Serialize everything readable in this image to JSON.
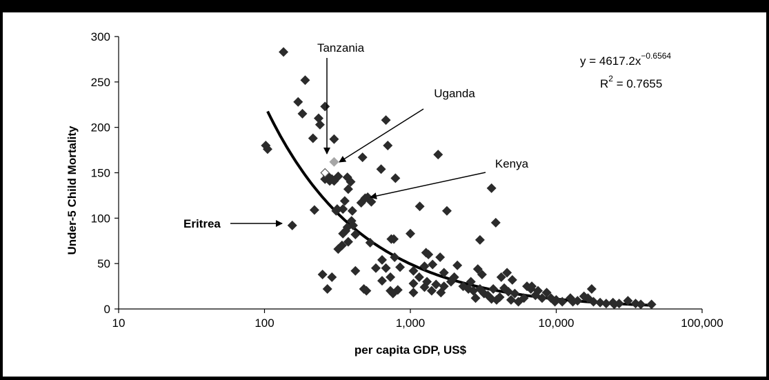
{
  "chart_data": {
    "type": "scatter",
    "title": "",
    "xlabel": "per capita GDP, US$",
    "ylabel": "Under-5 Child Mortality",
    "x_scale": "log",
    "xlim": [
      10,
      100000
    ],
    "ylim": [
      0,
      300
    ],
    "x_ticks": [
      10,
      100,
      1000,
      10000,
      100000
    ],
    "x_tick_labels": [
      "10",
      "100",
      "1,000",
      "10,000",
      "100,000"
    ],
    "y_ticks": [
      0,
      50,
      100,
      150,
      200,
      250,
      300
    ],
    "y_tick_labels": [
      "0",
      "50",
      "100",
      "150",
      "200",
      "250",
      "300"
    ],
    "grid": false,
    "legend": "none",
    "equation_label": "y = 4617.2x",
    "equation_exponent": "−0.6564",
    "r2_label": "R",
    "r2_sup": "2",
    "r2_value": " = 0.7655",
    "trendline": {
      "a": 4617.2,
      "b": -0.6564,
      "x_range": [
        105,
        45000
      ]
    },
    "colors": {
      "marker": "#2b2b2b",
      "highlight": "#a6a6a6",
      "line": "#000000"
    },
    "points": [
      [
        135,
        283
      ],
      [
        190,
        252
      ],
      [
        170,
        228
      ],
      [
        182,
        215
      ],
      [
        260,
        223
      ],
      [
        235,
        210
      ],
      [
        240,
        203
      ],
      [
        215,
        188
      ],
      [
        300,
        187
      ],
      [
        680,
        208
      ],
      [
        102,
        180
      ],
      [
        105,
        176
      ],
      [
        700,
        180
      ],
      [
        1550,
        170
      ],
      [
        470,
        167
      ],
      [
        630,
        154
      ],
      [
        1160,
        113
      ],
      [
        1780,
        108
      ],
      [
        3600,
        133
      ],
      [
        3850,
        95
      ],
      [
        320,
        146
      ],
      [
        290,
        143
      ],
      [
        300,
        141
      ],
      [
        370,
        145
      ],
      [
        390,
        140
      ],
      [
        375,
        132
      ],
      [
        270,
        147
      ],
      [
        280,
        141
      ],
      [
        260,
        143
      ],
      [
        510,
        123
      ],
      [
        460,
        117
      ],
      [
        540,
        118
      ],
      [
        490,
        122
      ],
      [
        355,
        119
      ],
      [
        345,
        110
      ],
      [
        400,
        108
      ],
      [
        315,
        110
      ],
      [
        310,
        108
      ],
      [
        395,
        97
      ],
      [
        405,
        92
      ],
      [
        370,
        90
      ],
      [
        360,
        86
      ],
      [
        420,
        82
      ],
      [
        345,
        83
      ],
      [
        220,
        109
      ],
      [
        375,
        74
      ],
      [
        320,
        66
      ],
      [
        770,
        77
      ],
      [
        740,
        77
      ],
      [
        790,
        144
      ],
      [
        1000,
        83
      ],
      [
        3000,
        76
      ],
      [
        155,
        92
      ],
      [
        340,
        70
      ],
      [
        530,
        73
      ],
      [
        780,
        57
      ],
      [
        640,
        54
      ],
      [
        850,
        46
      ],
      [
        680,
        45
      ],
      [
        580,
        45
      ],
      [
        730,
        35
      ],
      [
        640,
        31
      ],
      [
        730,
        20
      ],
      [
        820,
        21
      ],
      [
        760,
        17
      ],
      [
        500,
        20
      ],
      [
        480,
        22
      ],
      [
        420,
        42
      ],
      [
        250,
        38
      ],
      [
        270,
        22
      ],
      [
        290,
        35
      ],
      [
        1280,
        62
      ],
      [
        1330,
        60
      ],
      [
        1600,
        57
      ],
      [
        1250,
        47
      ],
      [
        1420,
        49
      ],
      [
        1700,
        40
      ],
      [
        1050,
        42
      ],
      [
        1150,
        35
      ],
      [
        1300,
        30
      ],
      [
        1500,
        27
      ],
      [
        1400,
        20
      ],
      [
        1620,
        18
      ],
      [
        1050,
        28
      ],
      [
        1050,
        18
      ],
      [
        1250,
        24
      ],
      [
        1700,
        25
      ],
      [
        1900,
        30
      ],
      [
        2100,
        48
      ],
      [
        2000,
        35
      ],
      [
        2300,
        25
      ],
      [
        2500,
        22
      ],
      [
        2700,
        20
      ],
      [
        2900,
        44
      ],
      [
        3100,
        38
      ],
      [
        2600,
        30
      ],
      [
        3000,
        22
      ],
      [
        3200,
        17
      ],
      [
        3400,
        15
      ],
      [
        2800,
        12
      ],
      [
        3600,
        11
      ],
      [
        3900,
        10
      ],
      [
        4200,
        35
      ],
      [
        4600,
        40
      ],
      [
        5000,
        32
      ],
      [
        4400,
        23
      ],
      [
        4700,
        19
      ],
      [
        5200,
        17
      ],
      [
        3700,
        22
      ],
      [
        4100,
        13
      ],
      [
        4900,
        10
      ],
      [
        5500,
        8
      ],
      [
        6000,
        12
      ],
      [
        6700,
        22
      ],
      [
        7200,
        15
      ],
      [
        6300,
        25
      ],
      [
        6800,
        25
      ],
      [
        7500,
        20
      ],
      [
        8000,
        12
      ],
      [
        8600,
        18
      ],
      [
        9200,
        12
      ],
      [
        10000,
        10
      ],
      [
        11000,
        8
      ],
      [
        12500,
        12
      ],
      [
        14000,
        9
      ],
      [
        15500,
        14
      ],
      [
        17500,
        22
      ],
      [
        16500,
        12
      ],
      [
        18000,
        8
      ],
      [
        20000,
        7
      ],
      [
        22000,
        6
      ],
      [
        24500,
        7
      ],
      [
        27000,
        6
      ],
      [
        31000,
        9
      ],
      [
        35000,
        6
      ],
      [
        38000,
        5
      ],
      [
        45000,
        5
      ],
      [
        9800,
        8
      ],
      [
        13000,
        8
      ],
      [
        25000,
        5
      ]
    ],
    "highlight_points": [
      [
        300,
        162
      ],
      [
        260,
        150
      ]
    ],
    "annotations": [
      {
        "label": "Tanzania",
        "bold": false
      },
      {
        "label": "Uganda",
        "bold": false
      },
      {
        "label": "Kenya",
        "bold": false
      },
      {
        "label": "Eritrea",
        "bold": true
      }
    ]
  }
}
